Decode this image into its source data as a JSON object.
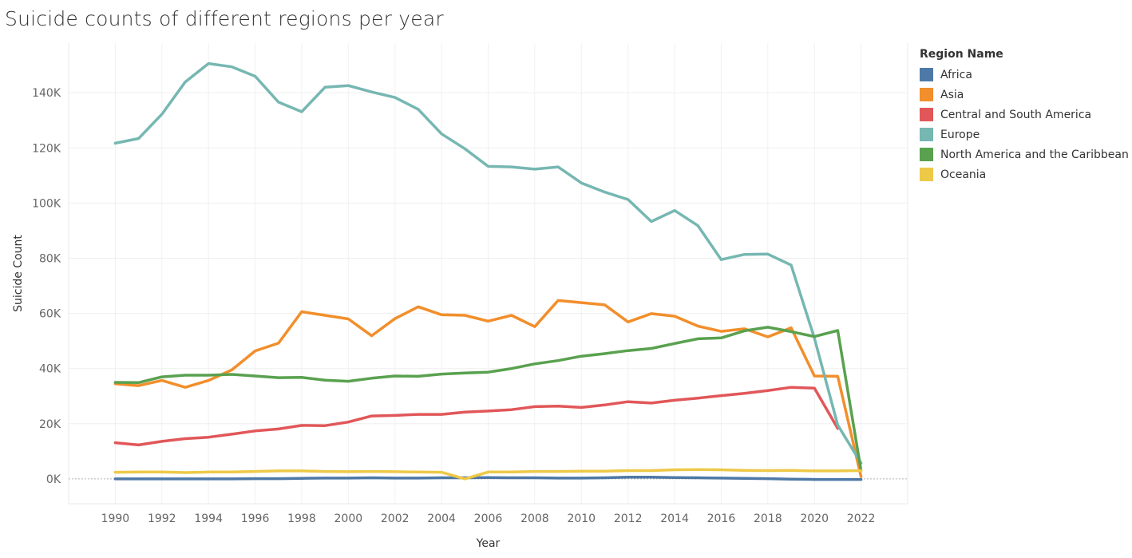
{
  "chart_data": {
    "type": "line",
    "title": "Suicide counts of different regions per year",
    "xlabel": "Year",
    "ylabel": "Suicide Count",
    "x": [
      1990,
      1991,
      1992,
      1993,
      1994,
      1995,
      1996,
      1997,
      1998,
      1999,
      2000,
      2001,
      2002,
      2003,
      2004,
      2005,
      2006,
      2007,
      2008,
      2009,
      2010,
      2011,
      2012,
      2013,
      2014,
      2015,
      2016,
      2017,
      2018,
      2019,
      2020,
      2021,
      2022
    ],
    "xticks": [
      1990,
      1992,
      1994,
      1996,
      1998,
      2000,
      2002,
      2004,
      2006,
      2008,
      2010,
      2012,
      2014,
      2016,
      2018,
      2020,
      2022
    ],
    "xtick_labels": [
      "1990",
      "1992",
      "1994",
      "1996",
      "1998",
      "2000",
      "2002",
      "2004",
      "2006",
      "2008",
      "2010",
      "2012",
      "2014",
      "2016",
      "2018",
      "2020",
      "2022"
    ],
    "yticks": [
      0,
      20000,
      40000,
      60000,
      80000,
      100000,
      120000,
      140000
    ],
    "ytick_labels": [
      "0K",
      "20K",
      "40K",
      "60K",
      "80K",
      "100K",
      "120K",
      "140K"
    ],
    "xlim": [
      1988,
      2024
    ],
    "ylim": [
      -9000,
      158000
    ],
    "grid": true,
    "legend_title": "Region Name",
    "legend_position": "right",
    "series": [
      {
        "name": "Africa",
        "color": "#4e79a7",
        "values": [
          0,
          0,
          0,
          0,
          0,
          0,
          100,
          100,
          200,
          300,
          300,
          400,
          300,
          300,
          400,
          400,
          500,
          400,
          400,
          300,
          300,
          400,
          600,
          600,
          500,
          400,
          300,
          200,
          100,
          -100,
          -200,
          -200,
          -200
        ]
      },
      {
        "name": "Asia",
        "color": "#f28e2b",
        "values": [
          34500,
          33800,
          35700,
          33200,
          35700,
          39500,
          46400,
          49200,
          60600,
          59300,
          58000,
          51900,
          58100,
          62400,
          59500,
          59300,
          57200,
          59300,
          55200,
          64700,
          63900,
          63100,
          56900,
          59900,
          59000,
          55400,
          53500,
          54400,
          51500,
          54800,
          37300,
          37200,
          800
        ]
      },
      {
        "name": "Central and South America",
        "color": "#e15759",
        "values": [
          13100,
          12300,
          13600,
          14600,
          15100,
          16200,
          17400,
          18100,
          19400,
          19300,
          20600,
          22800,
          23000,
          23400,
          23400,
          24200,
          24600,
          25100,
          26200,
          26400,
          25900,
          26800,
          28000,
          27500,
          28500,
          29300,
          30200,
          31000,
          32000,
          33200,
          32900,
          18300,
          null
        ]
      },
      {
        "name": "Europe",
        "color": "#76b7b2",
        "values": [
          121700,
          123400,
          132200,
          143900,
          150600,
          149400,
          146000,
          136600,
          133100,
          142000,
          142600,
          140300,
          138300,
          134000,
          125100,
          119700,
          113300,
          113100,
          112300,
          113100,
          107300,
          104000,
          101300,
          93300,
          97300,
          91800,
          79500,
          81400,
          81500,
          77500,
          51000,
          19500,
          5700
        ]
      },
      {
        "name": "North America and the Caribbean",
        "color": "#59a14f",
        "values": [
          35000,
          34900,
          37000,
          37600,
          37600,
          37900,
          37300,
          36700,
          36800,
          35800,
          35400,
          36500,
          37300,
          37200,
          38000,
          38400,
          38700,
          40000,
          41700,
          42900,
          44500,
          45400,
          46500,
          47300,
          49100,
          50800,
          51100,
          53700,
          55000,
          53400,
          51600,
          53800,
          3000
        ]
      },
      {
        "name": "Oceania",
        "color": "#edc948",
        "values": [
          2400,
          2500,
          2500,
          2300,
          2500,
          2500,
          2700,
          2900,
          2900,
          2700,
          2600,
          2700,
          2600,
          2500,
          2400,
          0,
          2500,
          2500,
          2700,
          2700,
          2800,
          2800,
          3000,
          3000,
          3300,
          3400,
          3300,
          3100,
          3000,
          3100,
          2900,
          2900,
          3000
        ]
      }
    ]
  }
}
